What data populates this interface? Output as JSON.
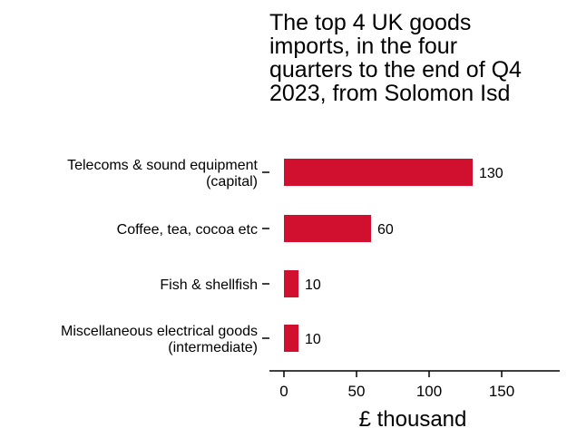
{
  "chart_data": {
    "type": "bar",
    "orientation": "horizontal",
    "title_lines": [
      "The top 4 UK goods",
      "imports, in the four",
      "quarters to the end of Q4",
      "2023, from Solomon Isd"
    ],
    "categories": [
      [
        "Telecoms & sound equipment",
        "(capital)"
      ],
      [
        "Coffee, tea, cocoa etc"
      ],
      [
        "Fish & shellfish"
      ],
      [
        "Miscellaneous electrical goods",
        "(intermediate)"
      ]
    ],
    "values": [
      130,
      60,
      10,
      10
    ],
    "value_labels": [
      "130",
      "60",
      "10",
      "10"
    ],
    "xlabel": "£ thousand",
    "xlim": [
      -10,
      190
    ],
    "xticks": [
      0,
      50,
      100,
      150
    ],
    "xtick_labels": [
      "0",
      "50",
      "100",
      "150"
    ],
    "bar_color": "#d0102e",
    "grid": false,
    "legend": "none"
  }
}
